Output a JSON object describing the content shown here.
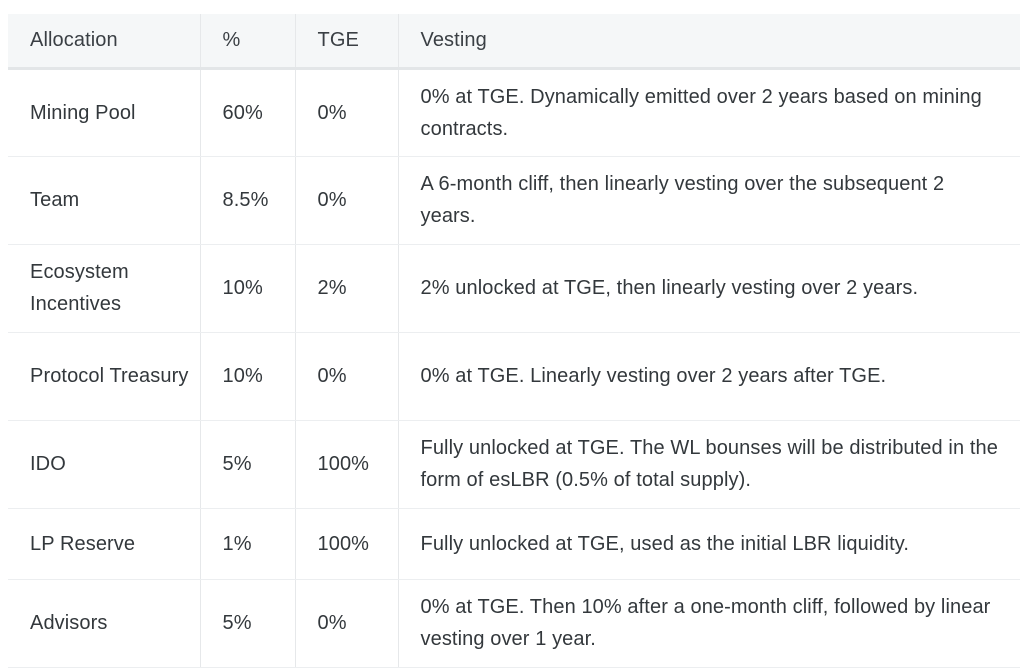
{
  "table": {
    "headers": [
      "Allocation",
      "%",
      "TGE",
      "Vesting"
    ],
    "rows": [
      {
        "allocation": "Mining Pool",
        "percent": "60%",
        "tge": "0%",
        "vesting": "0% at TGE. Dynamically emitted over 2 years based on mining contracts."
      },
      {
        "allocation": "Team",
        "percent": "8.5%",
        "tge": "0%",
        "vesting": "A 6-month cliff, then linearly vesting over the subsequent 2 years."
      },
      {
        "allocation": "Ecosystem Incentives",
        "percent": "10%",
        "tge": "2%",
        "vesting": "2% unlocked at TGE, then linearly vesting over 2 years."
      },
      {
        "allocation": "Protocol Treasury",
        "percent": "10%",
        "tge": "0%",
        "vesting": "0% at TGE. Linearly vesting over 2 years after TGE."
      },
      {
        "allocation": "IDO",
        "percent": "5%",
        "tge": "100%",
        "vesting": "Fully unlocked at TGE. The WL bounses will be distributed in the form of esLBR (0.5% of total supply)."
      },
      {
        "allocation": "LP Reserve",
        "percent": "1%",
        "tge": "100%",
        "vesting": "Fully unlocked at TGE, used as the initial LBR liquidity."
      },
      {
        "allocation": "Advisors",
        "percent": "5%",
        "tge": "0%",
        "vesting": "0% at TGE. Then 10% after a one-month cliff, followed by linear vesting over 1 year."
      }
    ]
  }
}
